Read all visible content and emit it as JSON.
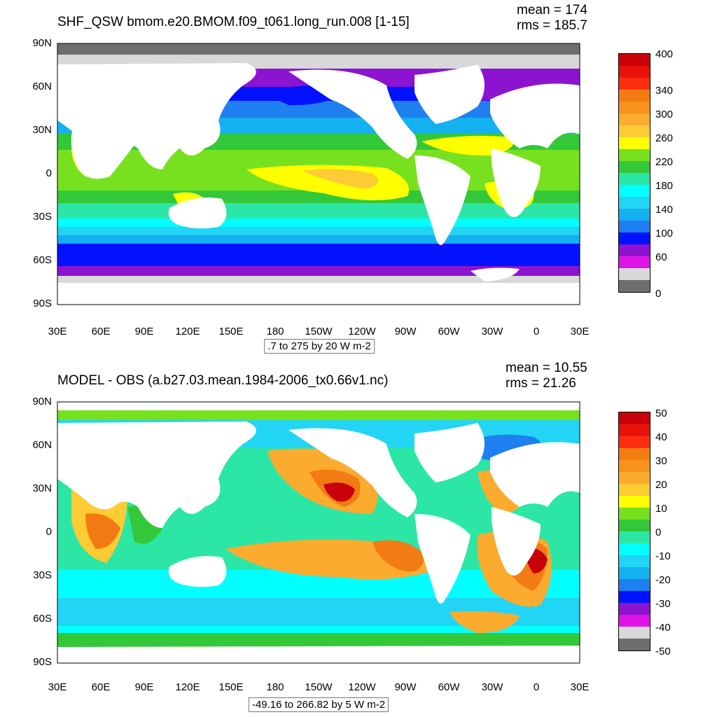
{
  "panels": [
    {
      "title": "SHF_QSW bmom.e20.BMOM.f09_t061.long_run.008 [1-15]",
      "mean_text": "mean = 174",
      "rms_text": "rms = 185.7",
      "info_text": ".7 to 275 by 20 W m-2",
      "colorbar_labels": [
        "400",
        "340",
        "300",
        "260",
        "220",
        "180",
        "140",
        "100",
        "60",
        "0"
      ],
      "colorbar_colors": [
        "#c8000a",
        "#e8120b",
        "#ff2e10",
        "#f27b13",
        "#f8921c",
        "#fbab2e",
        "#fdcb33",
        "#ffff00",
        "#77e11f",
        "#33c83a",
        "#2ce6a6",
        "#00ffff",
        "#23d5f4",
        "#14b0f0",
        "#1e7ff0",
        "#0012ff",
        "#8c14d0",
        "#e014e6",
        "#d8d8d8",
        "#6e6e6e"
      ]
    },
    {
      "title": "MODEL - OBS (a.b27.03.mean.1984-2006_tx0.66v1.nc)",
      "mean_text": "mean = 10.55",
      "rms_text": "rms = 21.26",
      "info_text": "-49.16 to 266.82 by 5 W m-2",
      "colorbar_labels": [
        "50",
        "40",
        "30",
        "20",
        "10",
        "0",
        "-10",
        "-20",
        "-30",
        "-40",
        "-50"
      ],
      "colorbar_colors": [
        "#c8000a",
        "#e8120b",
        "#ff2e10",
        "#f27b13",
        "#f8921c",
        "#fbab2e",
        "#fdcb33",
        "#ffff00",
        "#77e11f",
        "#33c83a",
        "#2ce6a6",
        "#00ffff",
        "#23d5f4",
        "#14b0f0",
        "#1e7ff0",
        "#0012ff",
        "#8c14d0",
        "#e014e6",
        "#d8d8d8",
        "#6e6e6e"
      ]
    }
  ],
  "y_axis_labels": [
    "90N",
    "60N",
    "30N",
    "0",
    "30S",
    "60S",
    "90S"
  ],
  "x_axis_labels": [
    "30E",
    "60E",
    "90E",
    "120E",
    "150E",
    "180",
    "150W",
    "120W",
    "90W",
    "60W",
    "30W",
    "0",
    "30E"
  ],
  "land_color": "#ffffff"
}
